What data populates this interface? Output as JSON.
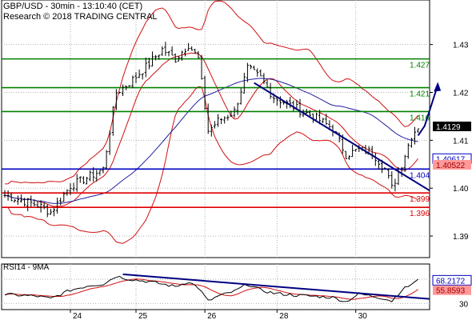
{
  "header": {
    "title": "GBP/USD - 30min - 13:10:40 (CET)",
    "subtitle": "Research © 2018 TRADING CENTRAL"
  },
  "colors": {
    "resistance": "#008000",
    "pivot": "#0000c0",
    "support": "#e00000",
    "price": "#000000",
    "bollinger": "#d01010",
    "moving_average": "#2020a0",
    "trendline": "#000080",
    "projection_arrow": "#000080",
    "current_price_bg": "#000000",
    "bb_label_bg": "#ff9999",
    "rsi_line": "#000000",
    "rsi_ma": "#d01010"
  },
  "chart_data": [
    {
      "type": "line",
      "name": "price-panel",
      "x_ticks": [
        "24",
        "25",
        "26",
        "28",
        "30"
      ],
      "y_ticks": [
        1.39,
        1.4,
        1.41,
        1.42,
        1.43
      ],
      "ylim": [
        1.3855,
        1.4393
      ],
      "y_tick_labels": [
        "1.39",
        "1.40",
        "1.41",
        "1.42",
        "1.43"
      ],
      "grid": true,
      "levels": [
        {
          "label": "1.427",
          "value": 1.427,
          "kind": "resistance"
        },
        {
          "label": "1.421",
          "value": 1.421,
          "kind": "resistance"
        },
        {
          "label": "1.416",
          "value": 1.416,
          "kind": "resistance"
        },
        {
          "label": "1.404",
          "value": 1.404,
          "kind": "pivot"
        },
        {
          "label": "1.399",
          "value": 1.399,
          "kind": "support"
        },
        {
          "label": "1.396",
          "value": 1.396,
          "kind": "support"
        }
      ],
      "price_labels": [
        {
          "label": "1.4129",
          "value": 1.4129,
          "style": "current"
        },
        {
          "label": "1.40617",
          "value": 1.40617,
          "style": "pivot"
        },
        {
          "label": "1.40522",
          "value": 1.40522,
          "style": "bollinger"
        }
      ],
      "bars": 130,
      "close_anchors": [
        [
          0,
          1.3985
        ],
        [
          10,
          1.3965
        ],
        [
          14,
          1.395
        ],
        [
          20,
          1.4005
        ],
        [
          26,
          1.4025
        ],
        [
          30,
          1.404
        ],
        [
          34,
          1.42
        ],
        [
          38,
          1.422
        ],
        [
          44,
          1.426
        ],
        [
          48,
          1.429
        ],
        [
          52,
          1.427
        ],
        [
          56,
          1.43
        ],
        [
          59,
          1.427
        ],
        [
          62,
          1.412
        ],
        [
          65,
          1.414
        ],
        [
          70,
          1.416
        ],
        [
          74,
          1.425
        ],
        [
          78,
          1.423
        ],
        [
          82,
          1.419
        ],
        [
          88,
          1.417
        ],
        [
          94,
          1.415
        ],
        [
          100,
          1.4125
        ],
        [
          104,
          1.407
        ],
        [
          108,
          1.408
        ],
        [
          112,
          1.4075
        ],
        [
          116,
          1.404
        ],
        [
          118,
          1.4
        ],
        [
          121,
          1.405
        ],
        [
          124,
          1.411
        ],
        [
          126,
          1.4129
        ]
      ],
      "trendline": [
        [
          76,
          1.422
        ],
        [
          130,
          1.3995
        ]
      ],
      "projection_arrow": [
        [
          126,
          1.411
        ],
        [
          128,
          1.413
        ],
        [
          132,
          1.4215
        ]
      ]
    },
    {
      "type": "line",
      "name": "rsi-panel",
      "title": "RSI14 - 9MA",
      "y_ticks": [
        30
      ],
      "y_tick_labels": [
        "30"
      ],
      "ylim": [
        20,
        95
      ],
      "value_labels": [
        {
          "label": "68.2172",
          "value": 68.2172,
          "style": "rsi"
        },
        {
          "label": "55.8593",
          "value": 55.8593,
          "style": "ma"
        }
      ],
      "rsi_anchors": [
        [
          0,
          45
        ],
        [
          10,
          42
        ],
        [
          14,
          38
        ],
        [
          20,
          52
        ],
        [
          26,
          60
        ],
        [
          30,
          62
        ],
        [
          34,
          75
        ],
        [
          38,
          70
        ],
        [
          44,
          66
        ],
        [
          48,
          62
        ],
        [
          52,
          58
        ],
        [
          56,
          66
        ],
        [
          59,
          56
        ],
        [
          62,
          34
        ],
        [
          65,
          42
        ],
        [
          70,
          50
        ],
        [
          74,
          62
        ],
        [
          78,
          52
        ],
        [
          82,
          47
        ],
        [
          88,
          44
        ],
        [
          94,
          42
        ],
        [
          100,
          40
        ],
        [
          104,
          33
        ],
        [
          108,
          46
        ],
        [
          112,
          42
        ],
        [
          116,
          38
        ],
        [
          118,
          34
        ],
        [
          121,
          52
        ],
        [
          124,
          62
        ],
        [
          126,
          68
        ]
      ],
      "trendline": [
        [
          36,
          78
        ],
        [
          140,
          33
        ]
      ]
    }
  ]
}
